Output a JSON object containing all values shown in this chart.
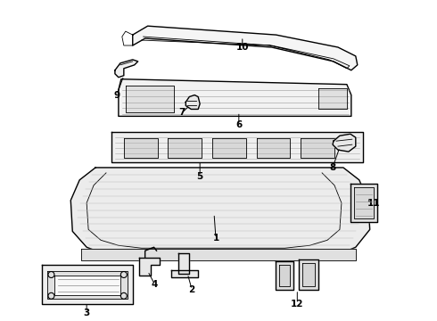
{
  "bg_color": "#ffffff",
  "line_color": "#000000",
  "label_color": "#000000",
  "lw_main": 1.0,
  "lw_thin": 0.6,
  "font_size": 7.5
}
